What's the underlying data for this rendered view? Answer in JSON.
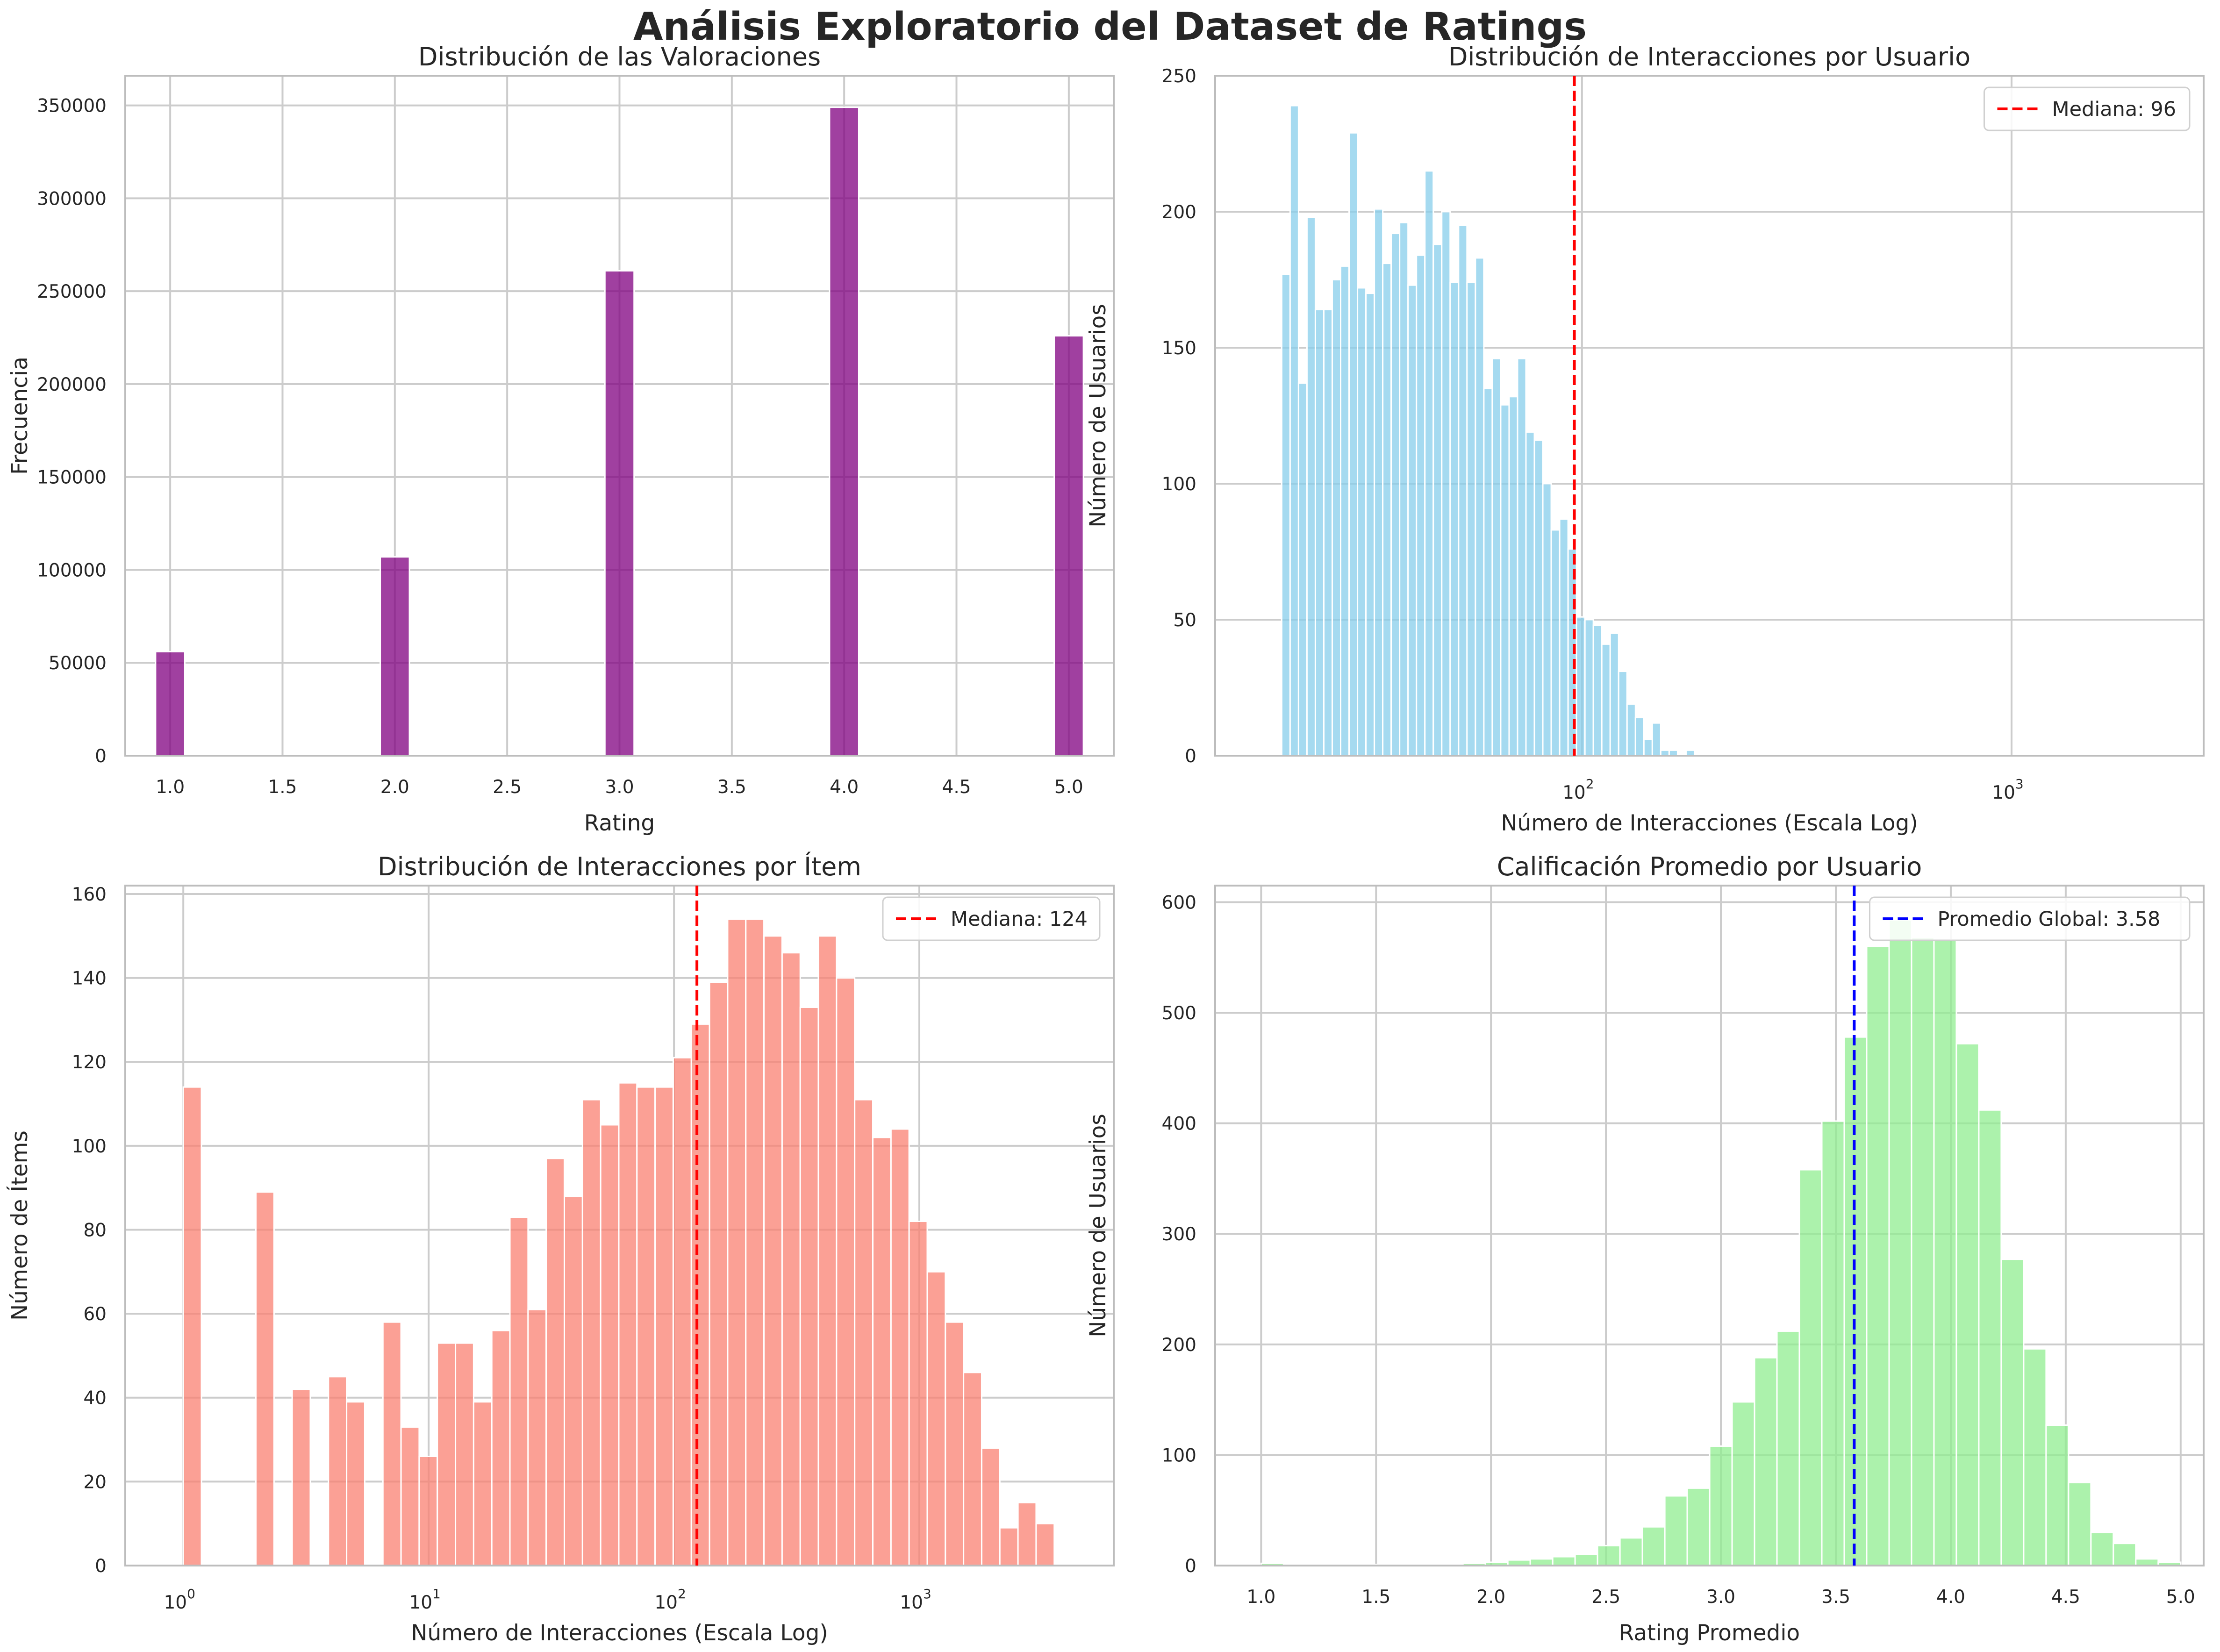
{
  "figure": {
    "title": "Análisis Exploratorio del Dataset de Ratings"
  },
  "chart_data": [
    {
      "type": "bar",
      "title": "Distribución de las Valoraciones",
      "xlabel": "Rating",
      "ylabel": "Frecuencia",
      "color": "#800080",
      "xscale": "linear",
      "xlim": [
        0.8,
        5.2
      ],
      "ylim": [
        0,
        366000
      ],
      "xticks": [
        1.0,
        1.5,
        2.0,
        2.5,
        3.0,
        3.5,
        4.0,
        4.5,
        5.0
      ],
      "xtick_labels": [
        "1.0",
        "1.5",
        "2.0",
        "2.5",
        "3.0",
        "3.5",
        "4.0",
        "4.5",
        "5.0"
      ],
      "yticks": [
        0,
        50000,
        100000,
        150000,
        200000,
        250000,
        300000,
        350000
      ],
      "ytick_labels": [
        "0",
        "50000",
        "100000",
        "150000",
        "200000",
        "250000",
        "300000",
        "350000"
      ],
      "bin_width": 0.13,
      "x": [
        1.0,
        2.0,
        3.0,
        4.0,
        5.0
      ],
      "values": [
        56000,
        107000,
        261000,
        349000,
        226000
      ],
      "grid": true
    },
    {
      "type": "bar",
      "title": "Distribución de Interacciones por Usuario",
      "xlabel": "Número de Interacciones (Escala Log)",
      "ylabel": "Número de Usuarios",
      "color": "#87CEEB",
      "xscale": "log",
      "xlim": [
        14,
        2800
      ],
      "ylim": [
        0,
        250
      ],
      "xticks": [
        100,
        1000
      ],
      "xtick_labels": [
        {
          "base": "10",
          "exp": "2"
        },
        {
          "base": "10",
          "exp": "3"
        }
      ],
      "yticks": [
        0,
        50,
        100,
        150,
        200,
        250
      ],
      "ytick_labels": [
        "0",
        "50",
        "100",
        "150",
        "200",
        "250"
      ],
      "bin_edges_log10": [
        1.301,
        2.301
      ],
      "values": [
        177,
        239,
        137,
        198,
        164,
        164,
        175,
        180,
        229,
        172,
        170,
        201,
        181,
        192,
        196,
        173,
        184,
        215,
        188,
        200,
        174,
        195,
        174,
        183,
        135,
        146,
        129,
        132,
        146,
        119,
        116,
        100,
        83,
        87,
        76,
        51,
        50,
        48,
        41,
        45,
        31,
        19,
        14,
        6,
        12,
        2,
        2,
        0,
        2,
        0,
        0
      ],
      "median_line": {
        "value": 96,
        "label": "Mediana: 96",
        "color": "#ff0000"
      },
      "legend": {
        "position": "top-right",
        "entries": [
          "Mediana: 96"
        ]
      },
      "grid": true
    },
    {
      "type": "bar",
      "title": "Distribución de Interacciones por Ítem",
      "xlabel": "Número de Interacciones (Escala Log)",
      "ylabel": "Número de Ítems",
      "color": "#FA8072",
      "xscale": "log",
      "xlim": [
        0.58,
        6200
      ],
      "ylim": [
        0,
        162
      ],
      "xticks": [
        1,
        10,
        100,
        1000
      ],
      "xtick_labels": [
        {
          "base": "10",
          "exp": "0"
        },
        {
          "base": "10",
          "exp": "1"
        },
        {
          "base": "10",
          "exp": "2"
        },
        {
          "base": "10",
          "exp": "3"
        }
      ],
      "yticks": [
        0,
        20,
        40,
        60,
        80,
        100,
        120,
        140,
        160
      ],
      "ytick_labels": [
        "0",
        "20",
        "40",
        "60",
        "80",
        "100",
        "120",
        "140",
        "160"
      ],
      "bin_edges_log10": [
        0,
        3.55
      ],
      "values": [
        114,
        0,
        0,
        0,
        89,
        0,
        42,
        0,
        45,
        39,
        0,
        58,
        33,
        26,
        53,
        53,
        39,
        56,
        83,
        61,
        97,
        88,
        111,
        105,
        115,
        114,
        114,
        121,
        129,
        139,
        154,
        154,
        150,
        146,
        133,
        150,
        140,
        111,
        102,
        104,
        82,
        70,
        58,
        46,
        28,
        9,
        15,
        10
      ],
      "median_line": {
        "value": 124,
        "label": "Mediana: 124",
        "color": "#ff0000"
      },
      "legend": {
        "position": "top-right",
        "entries": [
          "Mediana: 124"
        ]
      },
      "grid": true
    },
    {
      "type": "bar",
      "title": "Calificación Promedio por Usuario",
      "xlabel": "Rating Promedio",
      "ylabel": "Número de Usuarios",
      "color": "#90EE90",
      "xscale": "linear",
      "xlim": [
        0.8,
        5.1
      ],
      "ylim": [
        0,
        615
      ],
      "xticks": [
        1.0,
        1.5,
        2.0,
        2.5,
        3.0,
        3.5,
        4.0,
        4.5,
        5.0
      ],
      "xtick_labels": [
        "1.0",
        "1.5",
        "2.0",
        "2.5",
        "3.0",
        "3.5",
        "4.0",
        "4.5",
        "5.0"
      ],
      "yticks": [
        0,
        100,
        200,
        300,
        400,
        500,
        600
      ],
      "ytick_labels": [
        "0",
        "100",
        "200",
        "300",
        "400",
        "500",
        "600"
      ],
      "bin_edges": [
        1.0,
        5.0
      ],
      "values": [
        2,
        1,
        1,
        1,
        1,
        1,
        1,
        1,
        1,
        2,
        3,
        5,
        6,
        8,
        10,
        18,
        25,
        35,
        63,
        70,
        108,
        148,
        188,
        212,
        358,
        402,
        478,
        560,
        584,
        568,
        566,
        472,
        412,
        277,
        196,
        127,
        75,
        30,
        20,
        6,
        3
      ],
      "median_line": {
        "value": 3.58,
        "label": "Promedio Global: 3.58",
        "color": "#0000ff"
      },
      "legend": {
        "position": "top-right",
        "entries": [
          "Promedio Global: 3.58"
        ]
      },
      "grid": true
    }
  ]
}
